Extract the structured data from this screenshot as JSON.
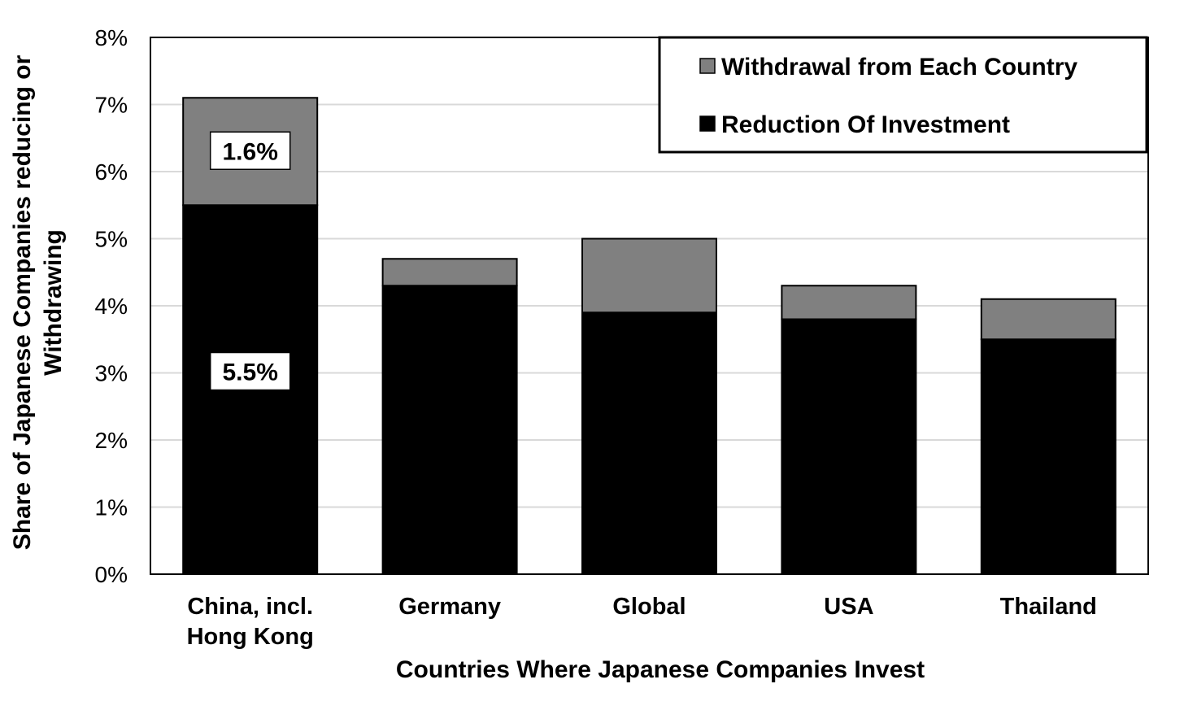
{
  "chart_data": {
    "type": "bar",
    "stacked": true,
    "categories": [
      [
        "China, incl.",
        "Hong Kong"
      ],
      [
        "Germany"
      ],
      [
        "Global"
      ],
      [
        "USA"
      ],
      [
        "Thailand"
      ]
    ],
    "series": [
      {
        "name": "Reduction Of Investment",
        "values": [
          5.5,
          4.3,
          3.9,
          3.8,
          3.5
        ],
        "color": "#000000"
      },
      {
        "name": "Withdrawal from Each Country",
        "values": [
          1.6,
          0.4,
          1.1,
          0.5,
          0.6
        ],
        "color": "#808080"
      }
    ],
    "data_labels": [
      {
        "category_index": 0,
        "series_index": 1,
        "text": "1.6%"
      },
      {
        "category_index": 0,
        "series_index": 0,
        "text": "5.5%"
      }
    ],
    "ylim": [
      0,
      8
    ],
    "yticks": [
      0,
      1,
      2,
      3,
      4,
      5,
      6,
      7,
      8
    ],
    "ytick_labels": [
      "0%",
      "1%",
      "2%",
      "3%",
      "4%",
      "5%",
      "6%",
      "7%",
      "8%"
    ],
    "xlabel": "Countries Where Japanese Companies Invest",
    "ylabel": [
      "Share of Japanese Companies reducing or",
      "Withdrawing"
    ],
    "legend": {
      "placement": "top-right",
      "entries": [
        "Withdrawal from Each Country",
        "Reduction Of Investment"
      ]
    },
    "grid": true,
    "grid_color": "#d9d9d9"
  }
}
